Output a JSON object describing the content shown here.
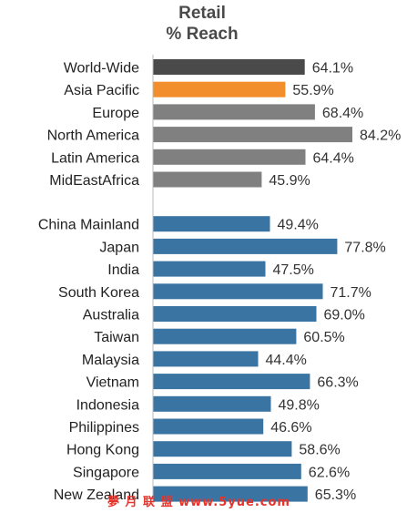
{
  "chart_data": {
    "type": "bar",
    "orientation": "horizontal",
    "title_lines": [
      "Retail",
      "% Reach"
    ],
    "categories": [
      "World-Wide",
      "Asia Pacific",
      "Europe",
      "North America",
      "Latin America",
      "MidEastAfrica",
      "China Mainland",
      "Japan",
      "India",
      "South Korea",
      "Australia",
      "Taiwan",
      "Malaysia",
      "Vietnam",
      "Indonesia",
      "Philippines",
      "Hong Kong",
      "Singapore",
      "New Zealand"
    ],
    "values": [
      64.1,
      55.9,
      68.4,
      84.2,
      64.4,
      45.9,
      49.4,
      77.8,
      47.5,
      71.7,
      69.0,
      60.5,
      44.4,
      66.3,
      49.8,
      46.6,
      58.6,
      62.6,
      65.3
    ],
    "value_labels": [
      "64.1%",
      "55.9%",
      "68.4%",
      "84.2%",
      "64.4%",
      "45.9%",
      "49.4%",
      "77.8%",
      "47.5%",
      "71.7%",
      "69.0%",
      "60.5%",
      "44.4%",
      "66.3%",
      "49.8%",
      "46.6%",
      "58.6%",
      "62.6%",
      "65.3%"
    ],
    "bar_colors": [
      "#4a4a4a",
      "#f28e2b",
      "#808080",
      "#808080",
      "#808080",
      "#808080",
      "#3a74a2",
      "#3a74a2",
      "#3a74a2",
      "#3a74a2",
      "#3a74a2",
      "#3a74a2",
      "#3a74a2",
      "#3a74a2",
      "#3a74a2",
      "#3a74a2",
      "#3a74a2",
      "#3a74a2",
      "#3a74a2"
    ],
    "groups": [
      {
        "start": 0,
        "count": 6
      },
      {
        "start": 6,
        "count": 13
      }
    ],
    "xlim": [
      0,
      100
    ],
    "grid": false,
    "legend": "none"
  },
  "watermark": "夢 月 联 盟  www.5yue.com"
}
